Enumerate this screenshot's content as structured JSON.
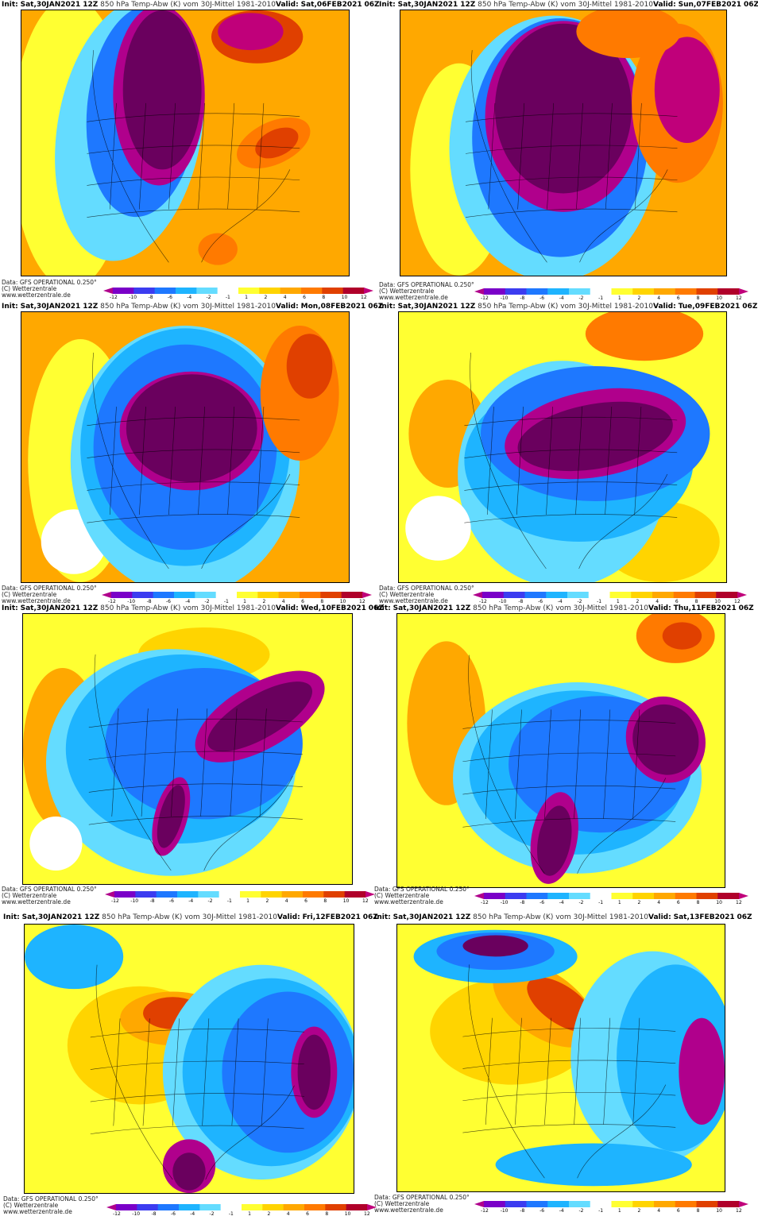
{
  "header": {
    "init_label": "Init:",
    "init_value": "Sat,30JAN2021",
    "run": "12Z",
    "description": "850 hPa Temp-Abw (K) vom 30J-Mittel 1981-2010",
    "valid_label": "Valid:",
    "suffix": "06Z"
  },
  "footer": {
    "line1": "Data: GFS OPERATIONAL 0.250°",
    "line2": "(C) Wetterzentrale",
    "line3": "www.wetterzentrale.de"
  },
  "colorbar": {
    "ticks": [
      "-12",
      "-10",
      "-8",
      "-6",
      "-4",
      "-2",
      "-1",
      "1",
      "2",
      "4",
      "6",
      "8",
      "10",
      "12"
    ],
    "colors": [
      "#b0008c",
      "#7a00c8",
      "#3c3cf0",
      "#1e78ff",
      "#1eb4ff",
      "#64dcff",
      "#ffffff",
      "#ffff32",
      "#ffd400",
      "#ffa800",
      "#ff7a00",
      "#e04000",
      "#b0002a",
      "#c0007a"
    ]
  },
  "panels": [
    {
      "valid": "Sat,06FEB2021"
    },
    {
      "valid": "Sun,07FEB2021"
    },
    {
      "valid": "Mon,08FEB2021"
    },
    {
      "valid": "Tue,09FEB2021"
    },
    {
      "valid": "Wed,10FEB2021"
    },
    {
      "valid": "Thu,11FEB2021"
    },
    {
      "valid": "Fri,12FEB2021"
    },
    {
      "valid": "Sat,13FEB2021"
    }
  ]
}
